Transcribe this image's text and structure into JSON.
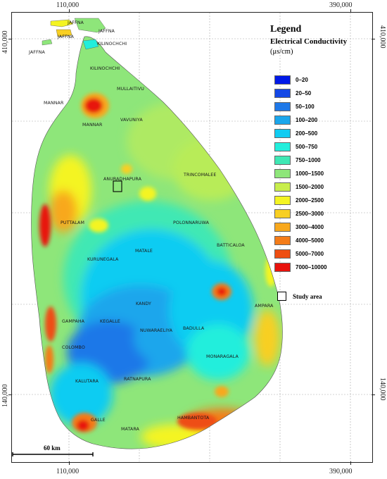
{
  "map": {
    "coords": {
      "top_left": "110,000",
      "top_right": "390,000",
      "bottom_left": "110,000",
      "bottom_right": "390,000",
      "left_top": "410,000",
      "left_bottom": "140,000",
      "right_top": "410,000",
      "right_bottom": "140,000"
    },
    "scale_label": "60 km",
    "places": {
      "jaffna_1": "JAFFNA",
      "jaffna_2": "JAFFNA",
      "jaffna_3": "JAFFNA",
      "jaffna_4": "JAFFNA",
      "kilinochchi_1": "KILINOCHCHI",
      "kilinochchi_2": "KILINOCHCHI",
      "mullaitivu": "MULLAITIVU",
      "mannar_1": "MANNAR",
      "mannar_2": "MANNAR",
      "vavuniya": "VAVUNIYA",
      "anuradhapura": "ANURADHAPURA",
      "trincomalee": "TRINCOMALEE",
      "puttalam": "PUTTALAM",
      "polonnaruwa": "POLONNARUWA",
      "batticaloa": "BATTICALOA",
      "matale": "MATALE",
      "kurunegala": "KURUNEGALA",
      "kandy": "KANDY",
      "ampara": "AMPARA",
      "gampaha": "GAMPAHA",
      "kegalle": "KEGALLE",
      "nuwaraeliya": "NUWARAELIYA",
      "badulla": "BADULLA",
      "colombo": "COLOMBO",
      "monaragala": "MONARAGALA",
      "kalutara": "KALUTARA",
      "ratnapura": "RATNAPURA",
      "galle": "GALLE",
      "matara": "MATARA",
      "hambantota": "HAMBANTOTA"
    }
  },
  "legend": {
    "title": "Legend",
    "subtitle": "Electrical Conductivity",
    "unit": "(μs/cm)",
    "classes": [
      {
        "label": "0–20",
        "color": "#0019e8"
      },
      {
        "label": "20–50",
        "color": "#1448e6"
      },
      {
        "label": "50–100",
        "color": "#1e78e8"
      },
      {
        "label": "100–200",
        "color": "#1aa6ec"
      },
      {
        "label": "200–500",
        "color": "#10ccf2"
      },
      {
        "label": "500–750",
        "color": "#22eedc"
      },
      {
        "label": "750–1000",
        "color": "#3fe8b4"
      },
      {
        "label": "1000–1500",
        "color": "#8ee67a"
      },
      {
        "label": "1500–2000",
        "color": "#c8ee4c"
      },
      {
        "label": "2000–2500",
        "color": "#f4f422"
      },
      {
        "label": "2500–3000",
        "color": "#f8cf22"
      },
      {
        "label": "3000–4000",
        "color": "#f8a81c"
      },
      {
        "label": "4000–5000",
        "color": "#f47c18"
      },
      {
        "label": "5000–7000",
        "color": "#ee4e12"
      },
      {
        "label": "7000–10000",
        "color": "#e8120c"
      }
    ],
    "study_area_label": "Study area"
  }
}
